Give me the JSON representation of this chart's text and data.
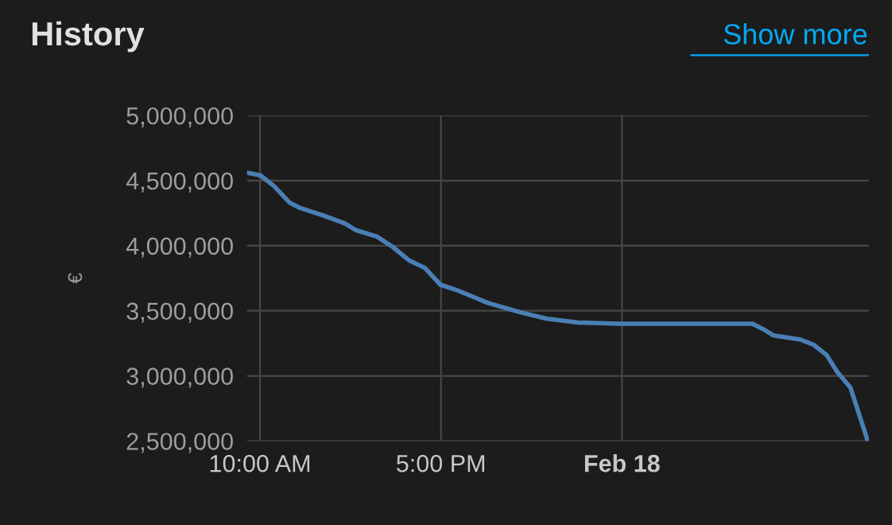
{
  "chart_data": {
    "type": "line",
    "title": "History",
    "ylabel": "€",
    "annotations": [
      "Show more"
    ],
    "x": [
      9.51,
      10.02,
      10.53,
      11.15,
      11.55,
      12.47,
      13.3,
      13.7,
      14.52,
      15.14,
      15.75,
      16.37,
      16.98,
      17.6,
      18.82,
      20.05,
      21.07,
      22.3,
      23.93,
      29.05,
      29.46,
      29.87,
      30.89,
      31.41,
      31.92,
      32.33,
      32.84,
      33.51
    ],
    "series": [
      {
        "color": "#4a7fb5",
        "values": [
          4560000,
          4540000,
          4460000,
          4330000,
          4290000,
          4230000,
          4170000,
          4120000,
          4070000,
          3990000,
          3890000,
          3830000,
          3700000,
          3660000,
          3560000,
          3490000,
          3440000,
          3410000,
          3400000,
          3400000,
          3360000,
          3310000,
          3280000,
          3240000,
          3160000,
          3030000,
          2910000,
          2500000
        ]
      }
    ],
    "xlim": [
      9.5,
      33.55
    ],
    "xticks": [
      {
        "value": 10,
        "label": "10:00 AM"
      },
      {
        "value": 17,
        "label": "5:00 PM"
      },
      {
        "value": 24,
        "label": "Feb 18"
      }
    ],
    "ylim": [
      2500000,
      5000000
    ],
    "yticks": [
      {
        "value": 2500000,
        "label": "2,500,000"
      },
      {
        "value": 3000000,
        "label": "3,000,000"
      },
      {
        "value": 3500000,
        "label": "3,500,000"
      },
      {
        "value": 4000000,
        "label": "4,000,000"
      },
      {
        "value": 4500000,
        "label": "4,500,000"
      },
      {
        "value": 5000000,
        "label": "5,000,000"
      }
    ],
    "grid": true,
    "marker": "none",
    "line_style": "solid",
    "legend": false
  }
}
